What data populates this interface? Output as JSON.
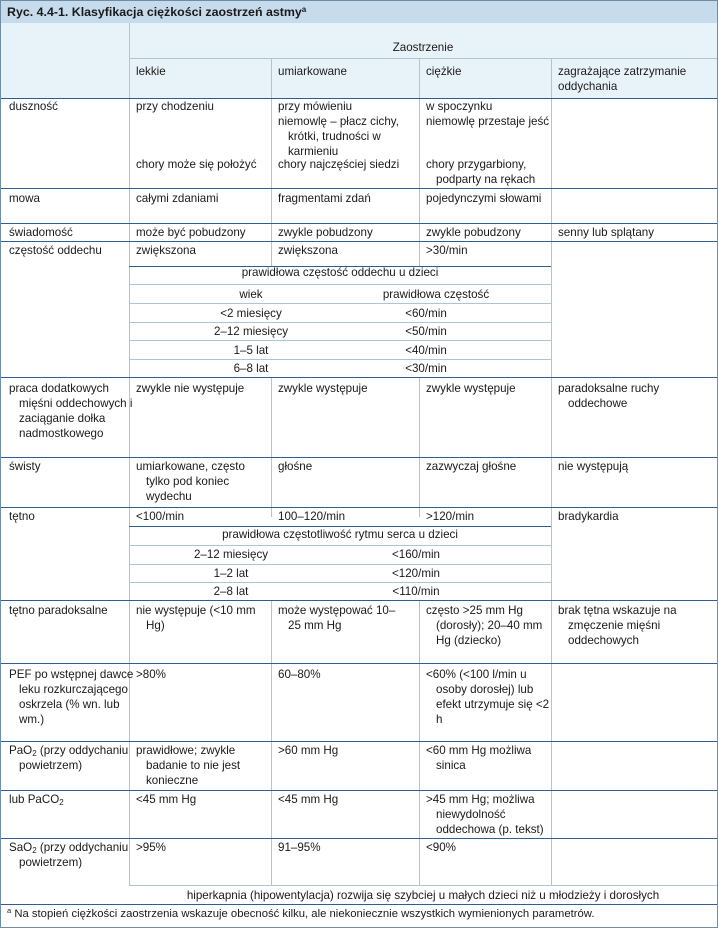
{
  "title": "Ryc. 4.4-1. Klasyfikacja ciężkości zaostrzeń astmy",
  "title_marker": "a",
  "header": {
    "group": "Zaostrzenie",
    "columns": [
      "lekkie",
      "umiarkowane",
      "ciężkie",
      "zagrażające zatrzymanie oddychania"
    ]
  },
  "rows": {
    "dusznosc": {
      "label": "duszność",
      "lekkie": [
        "przy chodzeniu",
        "chory może się położyć"
      ],
      "umiarkowane": [
        "przy mówieniu",
        "niemowlę – płacz cichy, krótki, trudności w karmieniu",
        "chory najczęściej siedzi"
      ],
      "ciezkie": [
        "w spoczynku",
        "niemowlę przestaje jeść",
        "chory przygarbiony, podparty na rękach"
      ]
    },
    "mowa": {
      "label": "mowa",
      "lekkie": "całymi zdaniami",
      "umiarkowane": "fragmentami zdań",
      "ciezkie": "pojedynczymi słowami"
    },
    "swiadomosc": {
      "label": "świadomość",
      "lekkie": "może być pobudzony",
      "umiarkowane": "zwykle pobudzony",
      "ciezkie": "zwykle pobudzony",
      "zagrazajace": "senny lub splątany"
    },
    "czestosc": {
      "label": "częstość oddechu",
      "lekkie": "zwiększona",
      "umiarkowane": "zwiększona",
      "ciezkie": ">30/min"
    },
    "praca": {
      "label": "praca dodatkowych mięśni oddechowych i zaciąganie dołka nadmostkowego",
      "lekkie": "zwykle nie występuje",
      "umiarkowane": "zwykle występuje",
      "ciezkie": "zwykle występuje",
      "zagrazajace": "paradoksalne ruchy oddechowe"
    },
    "swisty": {
      "label": "świsty",
      "lekkie": "umiarkowane, często tylko pod koniec wydechu",
      "umiarkowane": "głośne",
      "ciezkie": "zazwyczaj głośne",
      "zagrazajace": "nie występują"
    },
    "tetno": {
      "label": "tętno",
      "lekkie": "<100/min",
      "umiarkowane": "100–120/min",
      "ciezkie": ">120/min",
      "zagrazajace": "bradykardia"
    },
    "paradoksalne": {
      "label": "tętno paradoksalne",
      "lekkie": "nie występuje (<10 mm Hg)",
      "umiarkowane": "może występować 10–25 mm Hg",
      "ciezkie": "często >25 mm Hg (dorosły); 20–40 mm Hg (dziecko)",
      "zagrazajace": "brak tętna wskazuje na zmęczenie mięśni oddechowych"
    },
    "pef": {
      "label": "PEF po wstępnej dawce leku rozkurczającego oskrzela (% wn. lub wm.)",
      "lekkie": ">80%",
      "umiarkowane": "60–80%",
      "ciezkie": "<60% (<100 l/min u osoby dorosłej) lub efekt utrzymuje się <2 h"
    },
    "pao2": {
      "label_prefix": "PaO",
      "label_sub": "2",
      "label_suffix": " (przy oddychaniu powietrzem)",
      "lekkie": "prawidłowe; zwykle badanie to nie jest konieczne",
      "umiarkowane": ">60 mm Hg",
      "ciezkie": "<60 mm Hg możliwa sinica"
    },
    "paco2": {
      "label_prefix": "lub PaCO",
      "label_sub": "2",
      "lekkie": "<45 mm Hg",
      "umiarkowane": "<45 mm Hg",
      "ciezkie": ">45 mm Hg; możliwa niewydolność oddechowa (p. tekst)"
    },
    "sao2": {
      "label_prefix": "SaO",
      "label_sub": "2",
      "label_suffix": " (przy oddychaniu powietrzem)",
      "lekkie": ">95%",
      "umiarkowane": "91–95%",
      "ciezkie": "<90%"
    },
    "hiperkapnia": "hiperkapnia (hipowentylacja) rozwija się szybciej u małych dzieci niż u młodzieży i dorosłych"
  },
  "resp_sub": {
    "title": "prawidłowa częstość oddechu u dzieci",
    "col1": "wiek",
    "col2": "prawidłowa częstość",
    "rows": [
      [
        "<2 miesięcy",
        "<60/min"
      ],
      [
        "2–12 miesięcy",
        "<50/min"
      ],
      [
        "1–5 lat",
        "<40/min"
      ],
      [
        "6–8 lat",
        "<30/min"
      ]
    ]
  },
  "hr_sub": {
    "title": "prawidłowa częstotliwość rytmu serca u dzieci",
    "rows": [
      [
        "2–12 miesięcy",
        "<160/min"
      ],
      [
        "1–2 lat",
        "<120/min"
      ],
      [
        "2–8 lat",
        "<110/min"
      ]
    ]
  },
  "footnote_marker": "a",
  "footnote": "Na stopień ciężkości zaostrzenia wskazuje obecność kilku, ale niekoniecznie wszystkich wymienionych parametrów.",
  "colors": {
    "header_bg": "#c6dbeb",
    "band_bg": "#e8f2f9",
    "row_rule": "#2d5f8a",
    "grid": "#a9c6dc"
  }
}
